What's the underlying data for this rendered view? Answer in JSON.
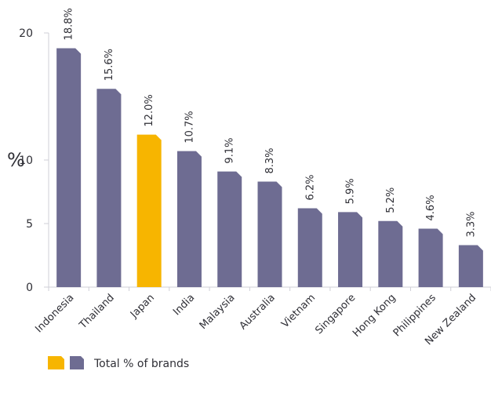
{
  "chart_data": {
    "type": "bar",
    "categories": [
      "Indonesia",
      "Thailand",
      "Japan",
      "India",
      "Malaysia",
      "Australia",
      "Vietnam",
      "Singapore",
      "Hong Kong",
      "Philippines",
      "New Zealand"
    ],
    "series": [
      {
        "name": "Total % of brands",
        "values": [
          18.8,
          15.6,
          12.0,
          10.7,
          9.1,
          8.3,
          6.2,
          5.9,
          5.2,
          4.6,
          3.3
        ]
      }
    ],
    "data_labels": [
      "18.8%",
      "15.6%",
      "12.0%",
      "10.7%",
      "9.1%",
      "8.3%",
      "6.2%",
      "5.9%",
      "5.2%",
      "4.6%",
      "3.3%"
    ],
    "title": "",
    "xlabel": "",
    "ylabel": "%",
    "ylim": [
      0,
      20
    ],
    "yticks": [
      "0",
      "5",
      "10",
      "20"
    ],
    "highlight_category": "Japan",
    "colors": {
      "default_bar": "#6e6c92",
      "highlight_bar": "#f7b500",
      "axis": "#cfcfd7",
      "text": "#2f2f36"
    },
    "grid": false,
    "legend": {
      "label": "Total % of brands",
      "position": "bottom-left"
    }
  }
}
